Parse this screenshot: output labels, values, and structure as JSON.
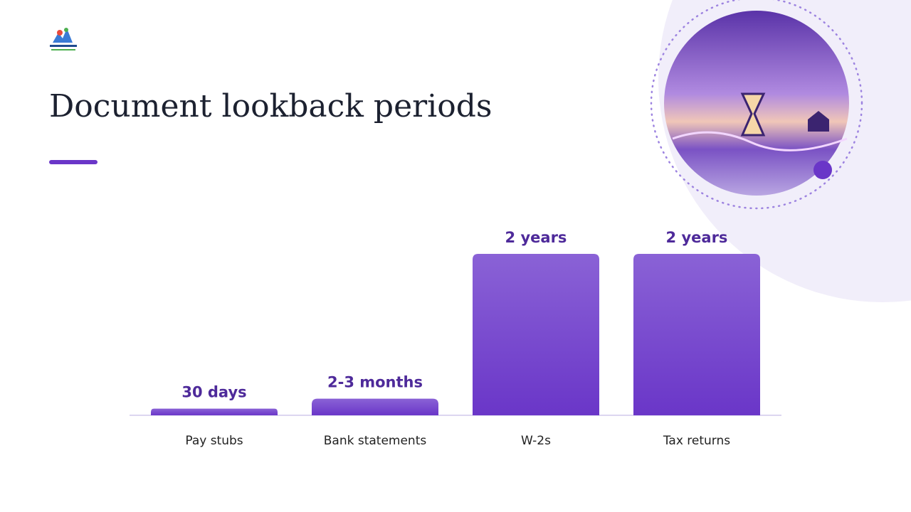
{
  "chart_data": {
    "type": "bar",
    "title": "Document lookback periods",
    "categories": [
      "Pay stubs",
      "Bank statements",
      "W-2s",
      "Tax returns"
    ],
    "values": [
      30,
      75,
      730,
      730
    ],
    "value_labels": [
      "30 days",
      "2-3 months",
      "2 years",
      "2 years"
    ],
    "color": "#6f3fcf"
  }
}
